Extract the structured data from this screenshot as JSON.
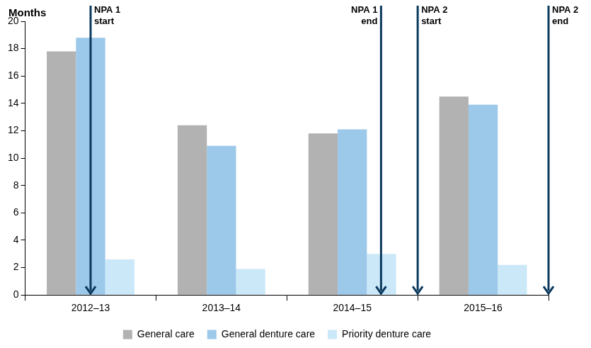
{
  "chart_data": {
    "type": "bar",
    "y_label": "Months",
    "categories": [
      "2012–13",
      "2013–14",
      "2014–15",
      "2015–16"
    ],
    "series": [
      {
        "name": "General care",
        "color": "#b2b2b2",
        "values": [
          17.8,
          12.4,
          11.8,
          14.5
        ]
      },
      {
        "name": "General denture care",
        "color": "#9cc8ea",
        "values": [
          18.8,
          10.9,
          12.1,
          13.9
        ]
      },
      {
        "name": "Priority denture care",
        "color": "#cbe8f9",
        "values": [
          2.6,
          1.9,
          3.0,
          2.2
        ]
      }
    ],
    "ylim": [
      0,
      20
    ],
    "yticks": [
      0,
      2,
      4,
      6,
      8,
      10,
      12,
      14,
      16,
      18,
      20
    ],
    "grid": false,
    "legend": "bottom",
    "annotations": [
      {
        "text": [
          "NPA 1",
          "start"
        ],
        "x": 0
      },
      {
        "text": [
          "NPA 1",
          "end"
        ],
        "x": 2.22
      },
      {
        "text": [
          "NPA 2",
          "start"
        ],
        "x": 2.5
      },
      {
        "text": [
          "NPA 2",
          "end"
        ],
        "x": 3.5
      }
    ]
  }
}
